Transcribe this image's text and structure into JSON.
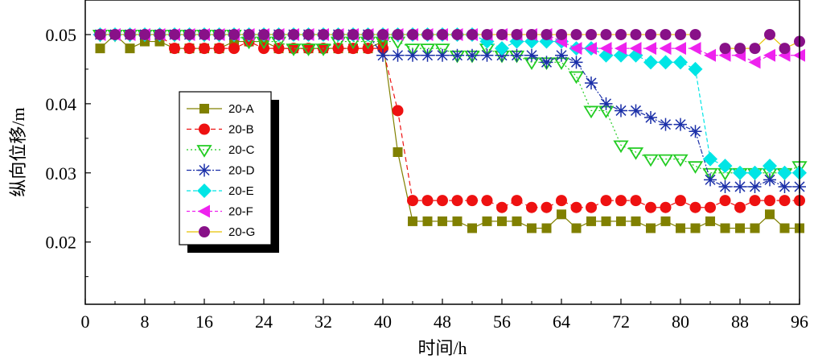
{
  "chart_data": {
    "type": "line",
    "title": "",
    "xlabel": "时间/h",
    "ylabel": "纵向位移/m",
    "xlim": [
      0,
      96
    ],
    "ylim": [
      0.011,
      0.055
    ],
    "xticks": [
      0,
      8,
      16,
      24,
      32,
      40,
      48,
      56,
      64,
      72,
      80,
      88,
      96
    ],
    "xtick_labels": [
      "0",
      "8",
      "16",
      "24",
      "32",
      "40",
      "48",
      "56",
      "64",
      "72",
      "80",
      "88",
      "96"
    ],
    "yticks": [
      0.02,
      0.03,
      0.04,
      0.05
    ],
    "ytick_labels": [
      "0.02",
      "0.03",
      "0.04",
      "0.05"
    ],
    "legend_position": "inside-left",
    "x": [
      2,
      4,
      6,
      8,
      10,
      12,
      14,
      16,
      18,
      20,
      22,
      24,
      26,
      28,
      30,
      32,
      34,
      36,
      38,
      40,
      42,
      44,
      46,
      48,
      50,
      52,
      54,
      56,
      58,
      60,
      62,
      64,
      66,
      68,
      70,
      72,
      74,
      76,
      78,
      80,
      82,
      84,
      86,
      88,
      90,
      92,
      94,
      96
    ],
    "series": [
      {
        "name": "20-A",
        "color": "#808000",
        "marker": "square",
        "dash": "",
        "values": [
          0.048,
          0.05,
          0.048,
          0.049,
          0.049,
          0.048,
          0.048,
          0.048,
          0.048,
          0.049,
          0.049,
          0.049,
          0.048,
          0.048,
          0.048,
          0.048,
          0.048,
          0.048,
          0.048,
          0.049,
          0.033,
          0.023,
          0.023,
          0.023,
          0.023,
          0.022,
          0.023,
          0.023,
          0.023,
          0.022,
          0.022,
          0.024,
          0.022,
          0.023,
          0.023,
          0.023,
          0.023,
          0.022,
          0.023,
          0.022,
          0.022,
          0.023,
          0.022,
          0.022,
          0.022,
          0.024,
          0.022,
          0.022
        ]
      },
      {
        "name": "20-B",
        "color": "#ee1111",
        "marker": "circle",
        "dash": "6,4",
        "values": [
          0.05,
          0.05,
          0.05,
          0.05,
          0.05,
          0.048,
          0.048,
          0.048,
          0.048,
          0.048,
          0.049,
          0.048,
          0.048,
          0.048,
          0.048,
          0.048,
          0.048,
          0.048,
          0.048,
          0.048,
          0.039,
          0.026,
          0.026,
          0.026,
          0.026,
          0.026,
          0.026,
          0.025,
          0.026,
          0.025,
          0.025,
          0.026,
          0.025,
          0.025,
          0.026,
          0.026,
          0.026,
          0.025,
          0.025,
          0.026,
          0.025,
          0.025,
          0.026,
          0.025,
          0.026,
          0.026,
          0.026,
          0.026
        ]
      },
      {
        "name": "20-C",
        "color": "#22cc22",
        "marker": "triangle-down",
        "dash": "2,3",
        "values": [
          0.05,
          0.05,
          0.05,
          0.05,
          0.05,
          0.05,
          0.05,
          0.05,
          0.05,
          0.05,
          0.049,
          0.049,
          0.049,
          0.048,
          0.048,
          0.048,
          0.049,
          0.049,
          0.049,
          0.049,
          0.049,
          0.048,
          0.048,
          0.048,
          0.047,
          0.047,
          0.048,
          0.047,
          0.047,
          0.046,
          0.046,
          0.046,
          0.044,
          0.039,
          0.039,
          0.034,
          0.033,
          0.032,
          0.032,
          0.032,
          0.031,
          0.03,
          0.03,
          0.03,
          0.03,
          0.03,
          0.03,
          0.031
        ]
      },
      {
        "name": "20-D",
        "color": "#1a2fa8",
        "marker": "asterisk",
        "dash": "6,2,2,2",
        "values": [
          0.05,
          0.05,
          0.05,
          0.05,
          0.05,
          0.05,
          0.05,
          0.05,
          0.05,
          0.05,
          0.05,
          0.05,
          0.05,
          0.05,
          0.05,
          0.05,
          0.05,
          0.05,
          0.05,
          0.047,
          0.047,
          0.047,
          0.047,
          0.047,
          0.047,
          0.047,
          0.047,
          0.047,
          0.047,
          0.047,
          0.046,
          0.047,
          0.046,
          0.043,
          0.04,
          0.039,
          0.039,
          0.038,
          0.037,
          0.037,
          0.036,
          0.029,
          0.028,
          0.028,
          0.028,
          0.029,
          0.028,
          0.028
        ]
      },
      {
        "name": "20-E",
        "color": "#00e5e5",
        "marker": "diamond",
        "dash": "5,3",
        "values": [
          0.05,
          0.05,
          0.05,
          0.05,
          0.05,
          0.05,
          0.05,
          0.05,
          0.05,
          0.05,
          0.05,
          0.05,
          0.05,
          0.05,
          0.05,
          0.05,
          0.05,
          0.05,
          0.05,
          0.05,
          0.05,
          0.05,
          0.05,
          0.05,
          0.05,
          0.05,
          0.049,
          0.048,
          0.049,
          0.049,
          0.049,
          0.049,
          0.048,
          0.048,
          0.047,
          0.047,
          0.047,
          0.046,
          0.046,
          0.046,
          0.045,
          0.032,
          0.031,
          0.03,
          0.03,
          0.031,
          0.03,
          0.03
        ]
      },
      {
        "name": "20-F",
        "color": "#ee22ee",
        "marker": "triangle-left",
        "dash": "4,3",
        "values": [
          0.05,
          0.05,
          0.05,
          0.05,
          0.05,
          0.05,
          0.05,
          0.05,
          0.05,
          0.05,
          0.05,
          0.05,
          0.05,
          0.05,
          0.05,
          0.05,
          0.05,
          0.05,
          0.05,
          0.05,
          0.05,
          0.05,
          0.05,
          0.05,
          0.05,
          0.05,
          0.05,
          0.05,
          0.05,
          0.05,
          0.05,
          0.049,
          0.048,
          0.048,
          0.048,
          0.048,
          0.048,
          0.048,
          0.048,
          0.048,
          0.048,
          0.047,
          0.047,
          0.047,
          0.046,
          0.047,
          0.047,
          0.047
        ]
      },
      {
        "name": "20-G",
        "color": "#881188",
        "marker": "circle",
        "dash": "",
        "line_color": "#e6c200",
        "values": [
          0.05,
          0.05,
          0.05,
          0.05,
          0.05,
          0.05,
          0.05,
          0.05,
          0.05,
          0.05,
          0.05,
          0.05,
          0.05,
          0.05,
          0.05,
          0.05,
          0.05,
          0.05,
          0.05,
          0.05,
          0.05,
          0.05,
          0.05,
          0.05,
          0.05,
          0.05,
          0.05,
          0.05,
          0.05,
          0.05,
          0.05,
          0.05,
          0.05,
          0.05,
          0.05,
          0.05,
          0.05,
          0.05,
          0.05,
          0.05,
          0.05,
          null,
          0.048,
          0.048,
          0.048,
          0.05,
          0.048,
          0.049
        ]
      }
    ]
  }
}
